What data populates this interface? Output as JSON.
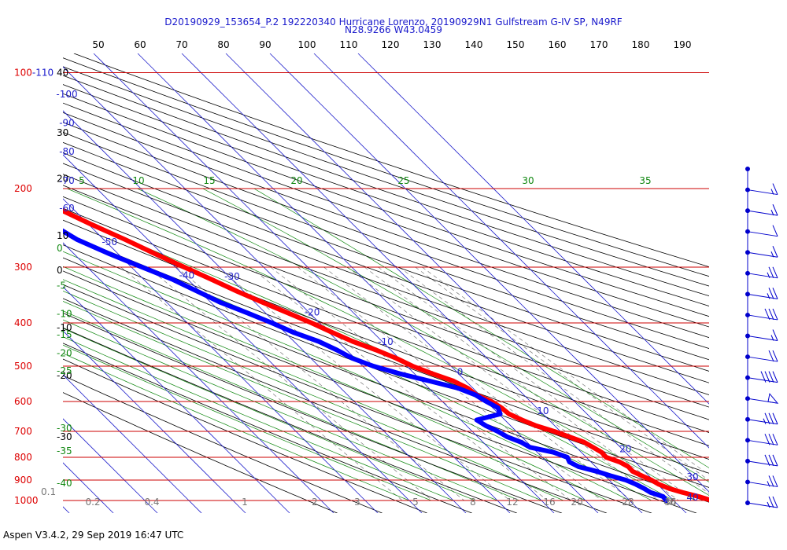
{
  "header": {
    "title_line1": "D20190929_153654_P.2 192220340 Hurricane Lorenzo, 20190929N1 Gulfstream G-IV SP, N49RF",
    "title_line2": "N28.9266 W43.0459"
  },
  "footer": {
    "text": "Aspen V3.4.2, 29 Sep 2019  16:47 UTC"
  },
  "chart_data": {
    "type": "skew-t log-p",
    "title": "D20190929_153654_P.2 192220340 Hurricane Lorenzo, 20190929N1 Gulfstream G-IV SP, N49RF N28.9266 W43.0459",
    "pressure_labels": [
      "100-110",
      "200",
      "300",
      "400",
      "500",
      "600",
      "700",
      "800",
      "900",
      "1000"
    ],
    "isobar_levels": [
      110,
      200,
      300,
      400,
      500,
      600,
      700,
      800,
      900,
      1000
    ],
    "top_scale_labels": [
      "50",
      "60",
      "70",
      "80",
      "90",
      "100",
      "110",
      "120",
      "130",
      "140",
      "150",
      "160",
      "170",
      "180",
      "190"
    ],
    "height_labels": [
      {
        "text": "40",
        "p": 110
      },
      {
        "text": "30",
        "p": 150
      },
      {
        "text": "20",
        "p": 190
      },
      {
        "text": "10",
        "p": 255
      },
      {
        "text": "0",
        "p": 305
      },
      {
        "text": "-10",
        "p": 410
      },
      {
        "text": "-20",
        "p": 525
      },
      {
        "text": "-30",
        "p": 720
      }
    ],
    "isotherm_labels": [
      {
        "text": "-100",
        "p": 125
      },
      {
        "text": "-90",
        "p": 145
      },
      {
        "text": "-80",
        "p": 168
      },
      {
        "text": "-70",
        "p": 195
      },
      {
        "text": "-60",
        "p": 225
      },
      {
        "text": "-50",
        "p": 268
      },
      {
        "text": "-40",
        "p": 318
      },
      {
        "text": "-30",
        "p": 320
      },
      {
        "text": "-20",
        "p": 385
      },
      {
        "text": "-10",
        "p": 448
      },
      {
        "text": "0",
        "p": 524
      },
      {
        "text": "10",
        "p": 640
      },
      {
        "text": "20",
        "p": 780
      },
      {
        "text": "30",
        "p": 900
      },
      {
        "text": "40",
        "p": 1000
      }
    ],
    "isotherm_range": {
      "min_temp": -160,
      "max_temp": 50,
      "step": 10
    },
    "dry_adiabat_labels": [
      "5",
      "10",
      "15",
      "20",
      "25",
      "30",
      "35"
    ],
    "moist_adiabat_labels": [
      "0",
      "-5",
      "-10",
      "-15",
      "-20",
      "-25",
      "-30",
      "-35",
      "-40"
    ],
    "mixing_ratio_labels": [
      "0.1",
      "0.2",
      "0.4",
      "1",
      "2",
      "3",
      "5",
      "8",
      "12",
      "16",
      "20",
      "28",
      "36",
      "40"
    ],
    "series": [
      {
        "name": "Temperature",
        "color": "#ff0000",
        "points": [
          [
            175,
            -62.8
          ],
          [
            190,
            -61.3
          ],
          [
            200,
            -58.1
          ],
          [
            220,
            -53.7
          ],
          [
            240,
            -49.5
          ],
          [
            260,
            -45.2
          ],
          [
            280,
            -41.6
          ],
          [
            300,
            -38.0
          ],
          [
            320,
            -34.6
          ],
          [
            340,
            -31.5
          ],
          [
            360,
            -28.2
          ],
          [
            380,
            -24.9
          ],
          [
            400,
            -21.8
          ],
          [
            420,
            -19.3
          ],
          [
            440,
            -16.7
          ],
          [
            460,
            -13.3
          ],
          [
            480,
            -10.6
          ],
          [
            500,
            -8.7
          ],
          [
            520,
            -5.9
          ],
          [
            540,
            -2.8
          ],
          [
            560,
            -1.2
          ],
          [
            580,
            -0.8
          ],
          [
            600,
            1.2
          ],
          [
            620,
            2.0
          ],
          [
            640,
            2.3
          ],
          [
            660,
            3.9
          ],
          [
            680,
            5.8
          ],
          [
            700,
            8.6
          ],
          [
            720,
            10.8
          ],
          [
            740,
            12.9
          ],
          [
            760,
            13.8
          ],
          [
            780,
            14.6
          ],
          [
            800,
            14.5
          ],
          [
            820,
            16.5
          ],
          [
            840,
            17.4
          ],
          [
            860,
            17.3
          ],
          [
            880,
            18.4
          ],
          [
            900,
            19.6
          ],
          [
            920,
            20.3
          ],
          [
            940,
            21.7
          ],
          [
            960,
            23.9
          ],
          [
            980,
            26.6
          ],
          [
            1000,
            28.6
          ]
        ]
      },
      {
        "name": "Dew point",
        "color": "#0000ff",
        "points": [
          [
            200,
            -67.9
          ],
          [
            210,
            -66.4
          ],
          [
            220,
            -62.4
          ],
          [
            240,
            -58.4
          ],
          [
            260,
            -56.1
          ],
          [
            280,
            -52.0
          ],
          [
            300,
            -47.6
          ],
          [
            320,
            -43.4
          ],
          [
            340,
            -40.5
          ],
          [
            360,
            -37.8
          ],
          [
            380,
            -34.1
          ],
          [
            400,
            -30.8
          ],
          [
            420,
            -28.1
          ],
          [
            440,
            -24.4
          ],
          [
            460,
            -22.2
          ],
          [
            480,
            -20.6
          ],
          [
            500,
            -17.6
          ],
          [
            520,
            -13.3
          ],
          [
            540,
            -8.2
          ],
          [
            560,
            -3.4
          ],
          [
            580,
            -1.0
          ],
          [
            600,
            0.0
          ],
          [
            620,
            1.2
          ],
          [
            640,
            0.3
          ],
          [
            660,
            -6.4
          ],
          [
            680,
            -5.6
          ],
          [
            700,
            -4.2
          ],
          [
            720,
            -3.3
          ],
          [
            740,
            -1.4
          ],
          [
            760,
            -0.5
          ],
          [
            780,
            3.7
          ],
          [
            800,
            5.7
          ],
          [
            820,
            5.1
          ],
          [
            840,
            6.1
          ],
          [
            860,
            9.1
          ],
          [
            880,
            11.3
          ],
          [
            900,
            13.8
          ],
          [
            920,
            15.1
          ],
          [
            940,
            16.0
          ],
          [
            960,
            16.6
          ],
          [
            980,
            18.5
          ],
          [
            1000,
            18.3
          ]
        ]
      }
    ],
    "wind_barbs": [
      {
        "p": 170,
        "speed": 0
      },
      {
        "p": 200,
        "speed": 15
      },
      {
        "p": 250,
        "speed": 15
      },
      {
        "p": 300,
        "speed": 10
      },
      {
        "p": 350,
        "speed": 15
      },
      {
        "p": 400,
        "speed": 25
      },
      {
        "p": 450,
        "speed": 25
      },
      {
        "p": 500,
        "speed": 30
      },
      {
        "p": 560,
        "speed": 15
      },
      {
        "p": 620,
        "speed": 20
      },
      {
        "p": 680,
        "speed": 40
      },
      {
        "p": 740,
        "speed": 50
      },
      {
        "p": 800,
        "speed": 35
      },
      {
        "p": 860,
        "speed": 30
      },
      {
        "p": 920,
        "speed": 30
      },
      {
        "p": 960,
        "speed": 25
      },
      {
        "p": 1000,
        "speed": 25
      }
    ],
    "colors": {
      "isobar": "#cc0000",
      "pressure_label": "#dd0000",
      "pressure_label_secondary": "#1a1acc",
      "isotherm": "#2222cc",
      "dry_adiabat": "#000000",
      "moist_adiabat": "#118811",
      "mixing_ratio": "#777777",
      "barb": "#0000cc"
    }
  }
}
